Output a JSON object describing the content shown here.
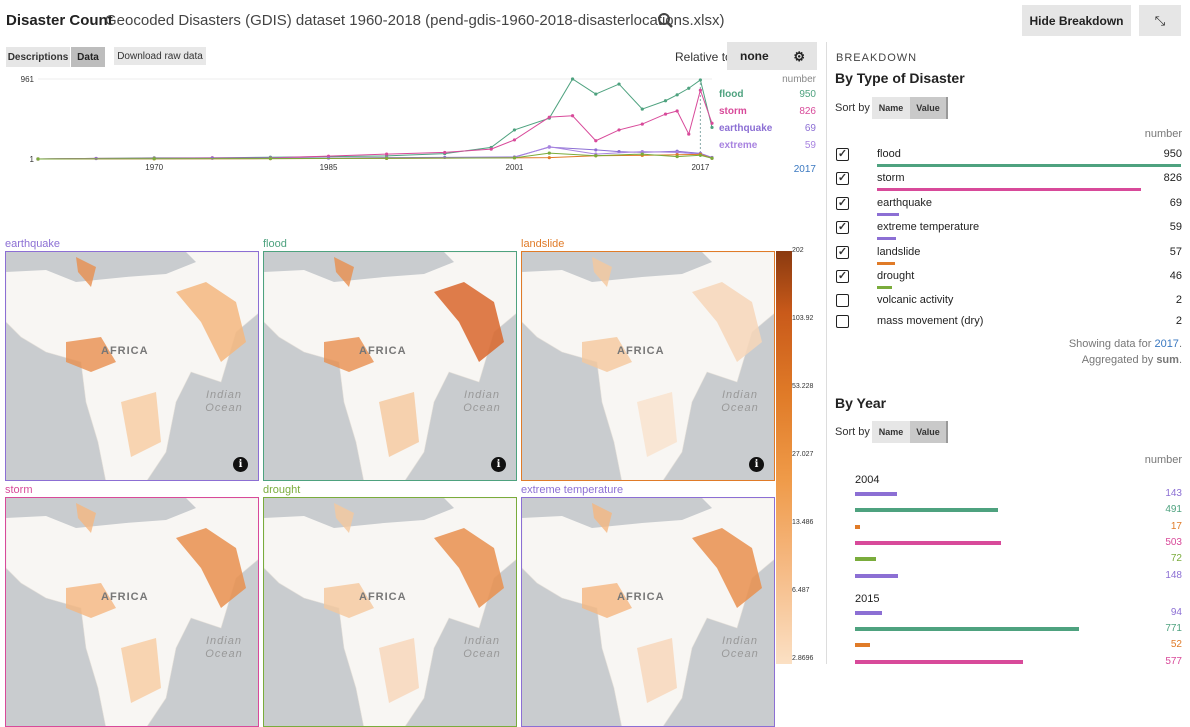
{
  "header": {
    "app_title": "Disaster Count",
    "dataset_title": "Geocoded Disasters (GDIS) dataset 1960-2018 (pend-gdis-1960-2018-disasterlocations.xlsx)",
    "hide_breakdown": "Hide Breakdown",
    "collapse_icon": "compress-icon"
  },
  "toolbar": {
    "tab_descriptions": "Descriptions",
    "tab_data": "Data",
    "download": "Download raw data",
    "relative_label": "Relative to",
    "relative_value": "none"
  },
  "chart_data": {
    "type": "line",
    "title": "",
    "xlabel": "",
    "ylabel": "number",
    "ylim": [
      1,
      961
    ],
    "y_ticks": [
      "961",
      "1"
    ],
    "x_ticks": [
      "1970",
      "1985",
      "2001",
      "2017"
    ],
    "xlim": [
      1960,
      2018
    ],
    "highlight_x": "2017",
    "unit": "number",
    "series": [
      {
        "name": "flood",
        "color": "#4ea27f",
        "end_value": "950",
        "x": [
          1960,
          1965,
          1970,
          1975,
          1980,
          1985,
          1990,
          1995,
          1999,
          2001,
          2004,
          2006,
          2008,
          2010,
          2012,
          2014,
          2015,
          2016,
          2017,
          2018
        ],
        "values": [
          1,
          8,
          15,
          15,
          22,
          30,
          38,
          65,
          140,
          350,
          491,
          961,
          780,
          900,
          600,
          700,
          771,
          850,
          950,
          380
        ]
      },
      {
        "name": "storm",
        "color": "#d84a9a",
        "end_value": "826",
        "x": [
          1960,
          1965,
          1970,
          1975,
          1980,
          1985,
          1990,
          1995,
          1999,
          2001,
          2004,
          2006,
          2008,
          2010,
          2012,
          2014,
          2015,
          2016,
          2017,
          2018
        ],
        "values": [
          1,
          8,
          10,
          15,
          15,
          35,
          60,
          80,
          120,
          230,
          503,
          520,
          220,
          350,
          420,
          540,
          577,
          300,
          826,
          430
        ]
      },
      {
        "name": "earthquake",
        "color": "#8c6fd4",
        "end_value": "69",
        "x": [
          1960,
          1965,
          1970,
          1975,
          1980,
          1985,
          1990,
          1995,
          2001,
          2004,
          2008,
          2010,
          2012,
          2015,
          2017,
          2018
        ],
        "values": [
          1,
          6,
          8,
          10,
          12,
          12,
          18,
          20,
          25,
          143,
          110,
          90,
          80,
          94,
          69,
          20
        ]
      },
      {
        "name": "extreme",
        "color": "#a883e0",
        "end_value": "59",
        "x": [
          1960,
          1970,
          1980,
          1990,
          2001,
          2004,
          2008,
          2012,
          2015,
          2017,
          2018
        ],
        "values": [
          1,
          5,
          8,
          10,
          20,
          148,
          60,
          90,
          80,
          59,
          10
        ]
      },
      {
        "name": "landslide",
        "color": "#e07b28",
        "end_value": "57",
        "x": [
          1960,
          1970,
          1980,
          1990,
          2001,
          2004,
          2008,
          2012,
          2015,
          2017,
          2018
        ],
        "values": [
          1,
          3,
          5,
          8,
          15,
          17,
          40,
          45,
          52,
          57,
          10
        ]
      },
      {
        "name": "drought",
        "color": "#7aac3c",
        "end_value": "46",
        "x": [
          1960,
          1970,
          1980,
          1990,
          2001,
          2004,
          2008,
          2012,
          2015,
          2017,
          2018
        ],
        "values": [
          1,
          4,
          6,
          10,
          15,
          72,
          40,
          60,
          30,
          46,
          10
        ]
      }
    ]
  },
  "maps": {
    "panels": [
      {
        "label": "earthquake",
        "color": "#8c6fd4",
        "africa": "AFRICA",
        "ocean1": "Indian",
        "ocean2": "Ocean",
        "info": true
      },
      {
        "label": "flood",
        "color": "#4ea27f",
        "africa": "AFRICA",
        "ocean1": "Indian",
        "ocean2": "Ocean",
        "info": true
      },
      {
        "label": "landslide",
        "color": "#e07b28",
        "africa": "AFRICA",
        "ocean1": "Indian",
        "ocean2": "Ocean",
        "info": true
      },
      {
        "label": "storm",
        "color": "#d84a9a",
        "africa": "AFRICA",
        "ocean1": "Indian",
        "ocean2": "Ocean",
        "info": false
      },
      {
        "label": "drought",
        "color": "#7aac3c",
        "africa": "AFRICA",
        "ocean1": "Indian",
        "ocean2": "Ocean",
        "info": false
      },
      {
        "label": "extreme temperature",
        "color": "#8c6fd4",
        "africa": "AFRICA",
        "ocean1": "Indian",
        "ocean2": "Ocean",
        "info": false
      }
    ],
    "colorbar_ticks": [
      "202",
      "103.92",
      "53.228",
      "27.027",
      "13.486",
      "6.487",
      "2.8696"
    ],
    "info_glyph": "i"
  },
  "breakdown": {
    "title": "BREAKDOWN",
    "by_type": {
      "title": "By Type of Disaster",
      "sort_by": "Sort by",
      "sort_name": "Name",
      "sort_value": "Value",
      "unit": "number",
      "rows": [
        {
          "checked": true,
          "name": "flood",
          "value": "950",
          "num": 950,
          "color": "#4ea27f"
        },
        {
          "checked": true,
          "name": "storm",
          "value": "826",
          "num": 826,
          "color": "#d84a9a"
        },
        {
          "checked": true,
          "name": "earthquake",
          "value": "69",
          "num": 69,
          "color": "#8c6fd4"
        },
        {
          "checked": true,
          "name": "extreme temperature",
          "value": "59",
          "num": 59,
          "color": "#8c6fd4"
        },
        {
          "checked": true,
          "name": "landslide",
          "value": "57",
          "num": 57,
          "color": "#e07b28"
        },
        {
          "checked": true,
          "name": "drought",
          "value": "46",
          "num": 46,
          "color": "#7aac3c"
        },
        {
          "checked": false,
          "name": "volcanic activity",
          "value": "2",
          "num": 2,
          "color": "#888"
        },
        {
          "checked": false,
          "name": "mass movement (dry)",
          "value": "2",
          "num": 2,
          "color": "#888"
        }
      ],
      "showing_prefix": "Showing data for ",
      "showing_year": "2017",
      "showing_suffix": ".",
      "aggregated_prefix": "Aggregated by ",
      "aggregated_value": "sum",
      "aggregated_suffix": "."
    },
    "by_year": {
      "title": "By Year",
      "sort_by": "Sort by",
      "sort_name": "Name",
      "sort_value": "Value",
      "unit": "number",
      "years": [
        {
          "year": "2004",
          "bars": [
            {
              "value": "143",
              "num": 143,
              "color": "#8c6fd4"
            },
            {
              "value": "491",
              "num": 491,
              "color": "#4ea27f"
            },
            {
              "value": "17",
              "num": 17,
              "color": "#e07b28"
            },
            {
              "value": "503",
              "num": 503,
              "color": "#d84a9a"
            },
            {
              "value": "72",
              "num": 72,
              "color": "#7aac3c"
            },
            {
              "value": "148",
              "num": 148,
              "color": "#8c6fd4"
            }
          ]
        },
        {
          "year": "2015",
          "bars": [
            {
              "value": "94",
              "num": 94,
              "color": "#8c6fd4"
            },
            {
              "value": "771",
              "num": 771,
              "color": "#4ea27f"
            },
            {
              "value": "52",
              "num": 52,
              "color": "#e07b28"
            },
            {
              "value": "577",
              "num": 577,
              "color": "#d84a9a"
            }
          ]
        }
      ]
    }
  }
}
